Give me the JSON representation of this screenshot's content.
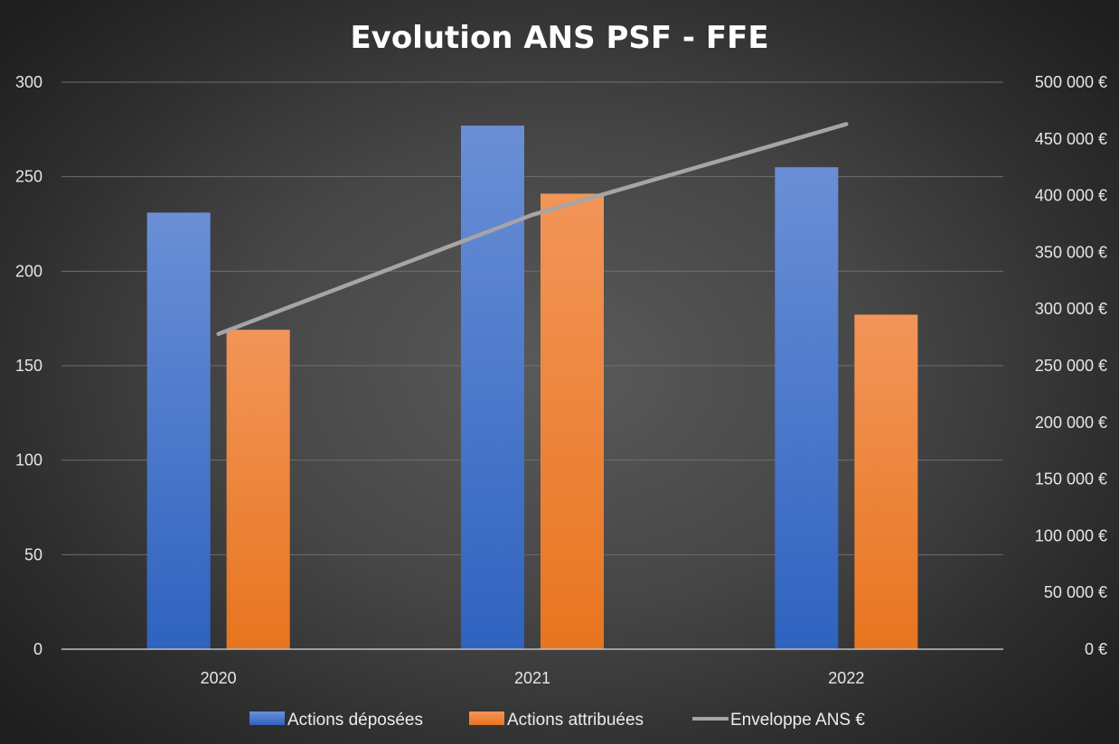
{
  "chart_data": {
    "type": "bar",
    "title": "Evolution ANS PSF - FFE",
    "categories": [
      "2020",
      "2021",
      "2022"
    ],
    "series": [
      {
        "name": "Actions déposées",
        "type": "bar",
        "axis": "left",
        "color": "#4472c4",
        "values": [
          231,
          277,
          255
        ]
      },
      {
        "name": "Actions attribuées",
        "type": "bar",
        "axis": "left",
        "color": "#ed7d31",
        "values": [
          169,
          241,
          177
        ]
      },
      {
        "name": "Enveloppe ANS €",
        "type": "line",
        "axis": "right",
        "color": "#a5a5a5",
        "values": [
          278000,
          383000,
          463000
        ]
      }
    ],
    "y_left": {
      "min": 0,
      "max": 300,
      "ticks": [
        0,
        50,
        100,
        150,
        200,
        250,
        300
      ],
      "tick_labels": [
        "0",
        "50",
        "100",
        "150",
        "200",
        "250",
        "300"
      ]
    },
    "y_right": {
      "min": 0,
      "max": 500000,
      "ticks": [
        0,
        50000,
        100000,
        150000,
        200000,
        250000,
        300000,
        350000,
        400000,
        450000,
        500000
      ],
      "tick_labels": [
        "0 €",
        "50 000 €",
        "100 000 €",
        "150 000 €",
        "200 000 €",
        "250 000 €",
        "300 000 €",
        "350 000 €",
        "400 000 €",
        "450 000 €",
        "500 000 €"
      ]
    },
    "grid": true,
    "legend_position": "bottom"
  }
}
